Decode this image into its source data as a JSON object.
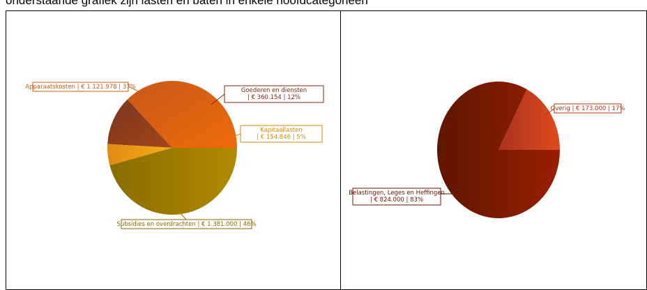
{
  "caption": "onderstaande grafiek zijn lasten en baten in enkele hoofdcategorieën",
  "chart_data": [
    {
      "type": "pie",
      "slices": [
        {
          "label": "Apparaatskosten | € 1.121.978 | 37%",
          "value": 1121978,
          "percent": 37,
          "color": "#d2600f",
          "label_color": "#cc5a10"
        },
        {
          "label": "Goederen en diensten | € 360.154 | 12%",
          "value": 360154,
          "percent": 12,
          "color": "#8a3a1c",
          "label_color": "#7a2a14"
        },
        {
          "label": "Kapitaallasten | € 154.846 | 5%",
          "value": 154846,
          "percent": 5,
          "color": "#eca214",
          "label_color": "#d08a10"
        },
        {
          "label": "Subsidies en overdrachten | € 1.381.000 | 46%",
          "value": 1381000,
          "percent": 46,
          "color": "#9a7a00",
          "label_color": "#8a6a00"
        }
      ]
    },
    {
      "type": "pie",
      "slices": [
        {
          "label": "Overig | € 173.000 | 17%",
          "value": 173000,
          "percent": 17,
          "color": "#c8381a",
          "label_color": "#b83010"
        },
        {
          "label": "Belastingen, Leges en Heffingen | € 824.000 | 83%",
          "value": 824000,
          "percent": 83,
          "color": "#7a1800",
          "label_color": "#6a1400"
        }
      ]
    }
  ]
}
